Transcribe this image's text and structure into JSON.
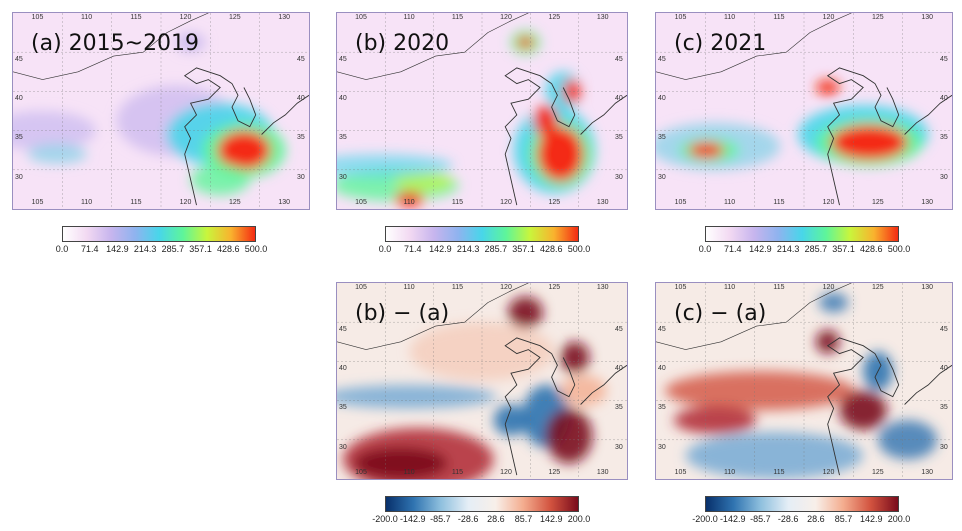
{
  "panels": [
    {
      "key": "a",
      "label": "(a) 2015~2019",
      "kind": "abs"
    },
    {
      "key": "b",
      "label": "(b) 2020",
      "kind": "abs"
    },
    {
      "key": "c",
      "label": "(c) 2021",
      "kind": "abs"
    },
    {
      "key": "ba",
      "label": "(b) − (a)",
      "kind": "diff"
    },
    {
      "key": "ca",
      "label": "(c) − (a)",
      "kind": "diff"
    }
  ],
  "lon_ticks": [
    "105",
    "110",
    "115",
    "120",
    "125",
    "130"
  ],
  "lat_ticks": [
    "30",
    "35",
    "40",
    "45"
  ],
  "abs_colorbar": {
    "labels": [
      "0.0",
      "71.4",
      "142.9",
      "214.3",
      "285.7",
      "357.1",
      "428.6",
      "500.0"
    ],
    "colors": [
      "#ffffff",
      "#f2d9f2",
      "#c7b5ee",
      "#8fb3ef",
      "#48d6ea",
      "#5ef59a",
      "#c9f53c",
      "#f9b22e",
      "#f42b12"
    ]
  },
  "diff_colorbar": {
    "labels": [
      "-200.0",
      "-142.9",
      "-85.7",
      "-28.6",
      "28.6",
      "85.7",
      "142.9",
      "200.0"
    ],
    "colors": [
      "#08306b",
      "#2f73b0",
      "#8fc0de",
      "#e5eef6",
      "#f8efe9",
      "#f4ad8f",
      "#d2533f",
      "#7a0c1c"
    ]
  },
  "colors": {
    "land_abs": "#f7e3f7",
    "land_diff": "#f6ebe6",
    "coast": "#333333",
    "grid": "#777777",
    "frame": "#9a8fc0"
  }
}
